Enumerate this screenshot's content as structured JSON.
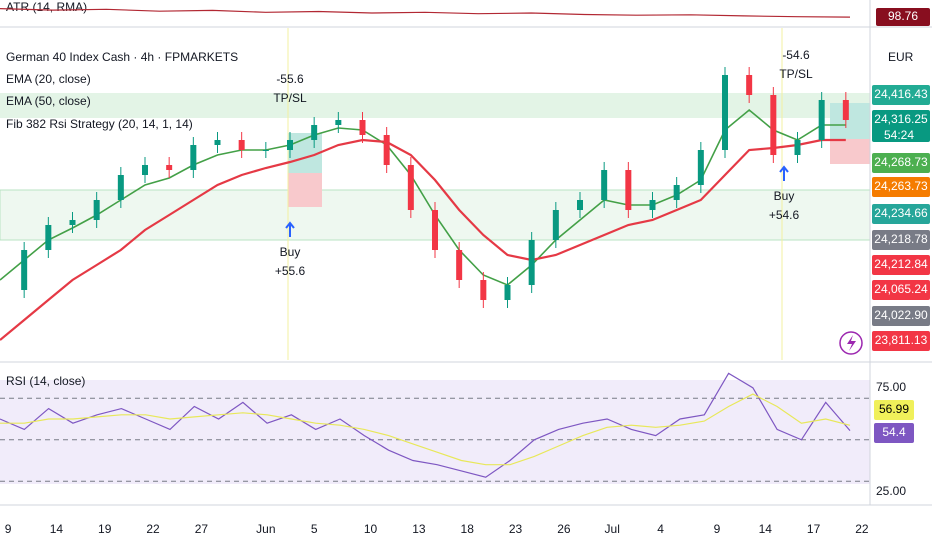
{
  "chart_data": [
    {
      "type": "atr",
      "title": "ATR (14, RMA)",
      "values": [
        122,
        118,
        120,
        115,
        117,
        112,
        114,
        110,
        112,
        108,
        110,
        106,
        104,
        105,
        102,
        100,
        98.76
      ],
      "ylim": [
        80,
        140
      ],
      "color": "#b22833",
      "badge_color": "#880e1f",
      "last_value": 98.76
    },
    {
      "type": "price",
      "title": "German 40 Index Cash · 4h · FPMARKETS",
      "currency": "EUR",
      "strategy": "Fib 382 Rsi Strategy (20, 14, 1, 14)",
      "x": [
        0,
        3,
        6,
        9,
        12,
        15,
        18,
        21,
        24,
        27,
        30,
        33,
        36,
        39,
        42,
        45,
        48,
        51,
        54,
        57,
        60,
        63,
        66,
        69,
        72,
        75,
        78,
        81,
        84,
        87,
        90,
        93,
        96,
        99,
        102,
        105
      ],
      "values": [
        23636,
        23796,
        23896,
        23916,
        23996,
        24096,
        24136,
        24116,
        24216,
        24236,
        24196,
        24196,
        24236,
        24296,
        24316,
        24256,
        24136,
        23956,
        23796,
        23676,
        23596,
        23656,
        23836,
        23956,
        23996,
        24116,
        23956,
        23996,
        24056,
        24196,
        24496,
        24416,
        24176,
        24236,
        24396,
        24316
      ],
      "color": "#089981",
      "series": [
        {
          "name": "EMA (20, close)",
          "color": "#43a047",
          "values": [
            23676,
            23756,
            23836,
            23884,
            23936,
            23996,
            24056,
            24084,
            24136,
            24176,
            24196,
            24196,
            24216,
            24256,
            24284,
            24276,
            24216,
            24096,
            23936,
            23796,
            23696,
            23656,
            23736,
            23836,
            23916,
            23996,
            23976,
            23976,
            24016,
            24076,
            24276,
            24356,
            24276,
            24236,
            24296,
            24296
          ]
        },
        {
          "name": "EMA (50, close)",
          "color": "#e53945",
          "values": [
            23436,
            23516,
            23596,
            23676,
            23736,
            23796,
            23876,
            23936,
            23996,
            24056,
            24096,
            24124,
            24148,
            24176,
            24216,
            24236,
            24228,
            24176,
            24076,
            23956,
            23856,
            23776,
            23756,
            23776,
            23816,
            23856,
            23896,
            23916,
            23956,
            23996,
            24096,
            24196,
            24204,
            24216,
            24236,
            24236
          ]
        }
      ],
      "ylim": [
        23356,
        24684
      ],
      "xlim": [
        0,
        108
      ],
      "xticks": [
        {
          "value": 1,
          "label": "9"
        },
        {
          "value": 7,
          "label": "14"
        },
        {
          "value": 13,
          "label": "19"
        },
        {
          "value": 19,
          "label": "22"
        },
        {
          "value": 25,
          "label": "27"
        },
        {
          "value": 33,
          "label": "Jun"
        },
        {
          "value": 39,
          "label": "5"
        },
        {
          "value": 46,
          "label": "10"
        },
        {
          "value": 52,
          "label": "13"
        },
        {
          "value": 58,
          "label": "18"
        },
        {
          "value": 64,
          "label": "23"
        },
        {
          "value": 70,
          "label": "26"
        },
        {
          "value": 76,
          "label": "Jul"
        },
        {
          "value": 82,
          "label": "4"
        },
        {
          "value": 89,
          "label": "9"
        },
        {
          "value": 95,
          "label": "14"
        },
        {
          "value": 101,
          "label": "17"
        },
        {
          "value": 107,
          "label": "22"
        }
      ],
      "badges": [
        {
          "label": "24,416.43",
          "color": "#22ab94"
        },
        {
          "label": "24,316.25",
          "color": "#089981"
        },
        {
          "label": "24,268.73",
          "color": "#4caf50"
        },
        {
          "label": "24,263.73",
          "color": "#f57c00"
        },
        {
          "label": "24,234.66",
          "color": "#26a69a"
        },
        {
          "label": "24,218.78",
          "color": "#787b86"
        },
        {
          "label": "24,212.84",
          "color": "#f23645"
        },
        {
          "label": "24,065.24",
          "color": "#f23645"
        },
        {
          "label": "24,022.90",
          "color": "#787b86"
        },
        {
          "label": "23,811.13",
          "color": "#f23645"
        }
      ],
      "countdown": "54:24",
      "annotations": [
        {
          "label": "-55.6",
          "sublabel": "TP/SL"
        },
        {
          "label": "Buy",
          "sublabel": "+55.6"
        },
        {
          "label": "-54.6",
          "sublabel": "TP/SL"
        },
        {
          "label": "Buy",
          "sublabel": "+54.6"
        }
      ]
    },
    {
      "type": "rsi",
      "title": "RSI (14, close)",
      "ylim": [
        21,
        86
      ],
      "yticks": [
        {
          "value": 75,
          "label": "75.00"
        },
        {
          "value": 25,
          "label": "25.00"
        }
      ],
      "levels": [
        70,
        50,
        30
      ],
      "series": [
        {
          "color": "#7e57c2",
          "values": [
            60,
            55,
            65,
            58,
            62,
            65,
            60,
            55,
            66,
            60,
            68,
            58,
            62,
            55,
            60,
            52,
            45,
            40,
            38,
            35,
            32,
            40,
            50,
            55,
            58,
            60,
            55,
            52,
            60,
            62,
            82,
            75,
            55,
            50,
            68,
            54.4
          ]
        },
        {
          "color": "#e8e85a",
          "values": [
            58,
            58,
            60,
            60,
            61,
            62,
            62,
            60,
            61,
            62,
            63,
            62,
            60,
            58,
            57,
            55,
            52,
            48,
            44,
            40,
            38,
            38,
            42,
            47,
            52,
            56,
            57,
            56,
            57,
            59,
            66,
            72,
            66,
            58,
            60,
            56.99
          ]
        }
      ],
      "badges": [
        {
          "value": 56.99,
          "color": "#f0f05a",
          "text_color": "#000"
        },
        {
          "value": 54.4,
          "color": "#7e57c2",
          "text_color": "#fff"
        }
      ]
    }
  ]
}
